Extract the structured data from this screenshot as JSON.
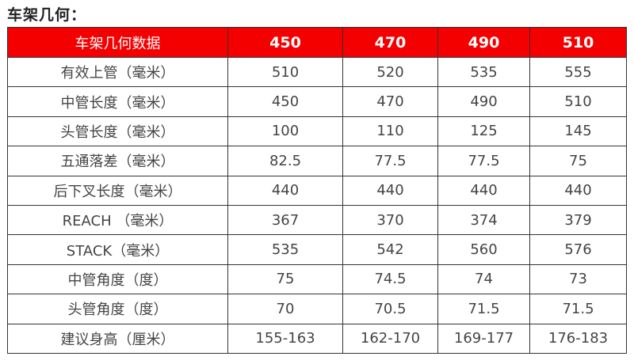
{
  "title": "车架几何：",
  "table": {
    "header": [
      "车架几何数据",
      "450",
      "470",
      "490",
      "510"
    ],
    "header_color": "#f40000",
    "rows": [
      {
        "label": "有效上管（毫米）",
        "values": [
          "510",
          "520",
          "535",
          "555"
        ]
      },
      {
        "label": "中管长度（毫米）",
        "values": [
          "450",
          "470",
          "490",
          "510"
        ]
      },
      {
        "label": "头管长度（毫米）",
        "values": [
          "100",
          "110",
          "125",
          "145"
        ]
      },
      {
        "label": "五通落差（毫米）",
        "values": [
          "82.5",
          "77.5",
          "77.5",
          "75"
        ]
      },
      {
        "label": "后下叉长度（毫米）",
        "values": [
          "440",
          "440",
          "440",
          "440"
        ]
      },
      {
        "label": "REACH （毫米）",
        "values": [
          "367",
          "370",
          "374",
          "379"
        ]
      },
      {
        "label": "STACK（毫米）",
        "values": [
          "535",
          "542",
          "560",
          "576"
        ]
      },
      {
        "label": "中管角度（度）",
        "values": [
          "75",
          "74.5",
          "74",
          "73"
        ]
      },
      {
        "label": "头管角度（度）",
        "values": [
          "70",
          "70.5",
          "71.5",
          "71.5"
        ]
      },
      {
        "label": "建议身高（厘米）",
        "values": [
          "155-163",
          "162-170",
          "169-177",
          "176-183"
        ]
      }
    ]
  }
}
